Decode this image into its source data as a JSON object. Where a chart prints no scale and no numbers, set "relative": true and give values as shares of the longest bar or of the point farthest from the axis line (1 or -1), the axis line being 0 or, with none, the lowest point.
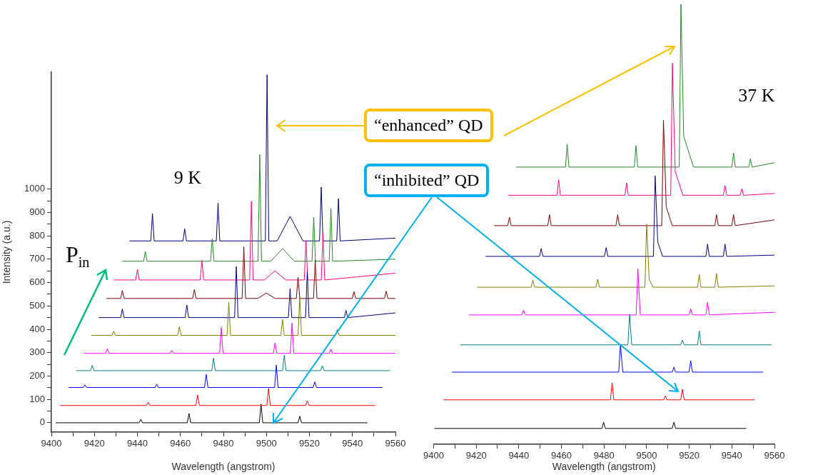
{
  "chart_data": [
    {
      "type": "line",
      "title": "9 K",
      "xlabel": "Wavelength (angstrom)",
      "ylabel": "Intensity (a.u.)",
      "xlim": [
        9400,
        9560
      ],
      "xticks": [
        9400,
        {
          "value": 9410,
          "label": null
        },
        9420,
        {
          "value": 9430,
          "label": null
        },
        9440,
        {
          "value": 9450,
          "label": null
        },
        9460,
        {
          "value": 9470,
          "label": null
        },
        9480,
        {
          "value": 9490,
          "label": null
        },
        9500,
        {
          "value": 9510,
          "label": null
        },
        9520,
        {
          "value": 9530,
          "label": null
        },
        9540,
        {
          "value": 9550,
          "label": null
        },
        9560
      ],
      "ylim": [
        -40,
        1500
      ],
      "yticks": [
        0,
        {
          "value": 50,
          "label": null
        },
        100,
        {
          "value": 150,
          "label": null
        },
        200,
        {
          "value": 250,
          "label": null
        },
        300,
        {
          "value": 350,
          "label": null
        },
        400,
        {
          "value": 450,
          "label": null
        },
        500,
        {
          "value": 550,
          "label": null
        },
        600,
        {
          "value": 650,
          "label": null
        },
        700,
        {
          "value": 750,
          "label": null
        },
        800,
        {
          "value": 850,
          "label": null
        },
        900,
        {
          "value": 950,
          "label": null
        },
        1000
      ],
      "grid": false,
      "legend": false,
      "marker": "none",
      "line_style": "solid",
      "annotations": [
        "“enhanced” QD",
        "“inhibited” QD",
        "P$_{in}$"
      ],
      "series": [
        {
          "color": "#000000",
          "x": [
            9402,
            9440.8,
            9441.6,
            9442.4,
            9463.2,
            9464,
            9464.8,
            9496.7,
            9497.5,
            9498.3,
            9514.7,
            9515.5,
            9516.3,
            9547
          ],
          "values": [
            0,
            0,
            15,
            0,
            0,
            40,
            0,
            0,
            80,
            0,
            0,
            28,
            0,
            0
          ]
        },
        {
          "color": "#ff0000",
          "x": [
            9404,
            9444.2,
            9445,
            9445.8,
            9467.2,
            9468,
            9468.8,
            9500.2,
            9501,
            9501.8,
            9518.2,
            9519,
            9519.8,
            9550.5
          ],
          "values": [
            74,
            74,
            88,
            74,
            74,
            119,
            74,
            74,
            147,
            74,
            74,
            94,
            74,
            74
          ]
        },
        {
          "color": "#0000ff",
          "x": [
            9408,
            9414.8,
            9415.6,
            9416.4,
            9448.2,
            9449,
            9449.8,
            9471.2,
            9472,
            9472.8,
            9503.8,
            9504.6,
            9505.4,
            9521.7,
            9522.5,
            9523.3,
            9554
          ],
          "values": [
            151,
            151,
            162,
            151,
            151,
            165,
            151,
            151,
            207,
            151,
            151,
            247,
            151,
            151,
            175,
            151,
            151
          ]
        },
        {
          "color": "#008080",
          "x": [
            9411.5,
            9418.2,
            9419,
            9419.8,
            9474.6,
            9475.4,
            9476.2,
            9507.5,
            9508.3,
            9509.1,
            9525.2,
            9526,
            9526.8,
            9557.5
          ],
          "values": [
            223,
            223,
            246,
            223,
            223,
            277,
            223,
            223,
            289,
            223,
            223,
            244,
            223,
            223
          ]
        },
        {
          "color": "#ff00ff",
          "x": [
            9415,
            9425.2,
            9426,
            9426.8,
            9455.2,
            9456,
            9456.8,
            9478.2,
            9479,
            9479.8,
            9503.2,
            9504,
            9504.8,
            9511.1,
            9511.9,
            9512.7,
            9529.2,
            9530,
            9530.8,
            9560
          ],
          "values": [
            297,
            297,
            317,
            297,
            297,
            310,
            297,
            297,
            408,
            297,
            297,
            342,
            297,
            297,
            427,
            297,
            297,
            315,
            297,
            297
          ]
        },
        {
          "color": "#808000",
          "x": [
            9418.5,
            9428.2,
            9429,
            9429.8,
            9458.7,
            9459.5,
            9460.3,
            9481.7,
            9482.5,
            9483.3,
            9506.7,
            9507.5,
            9508.3,
            9514.7,
            9515.5,
            9516.3,
            9532.2,
            9533,
            9533.8,
            9560
          ],
          "values": [
            374,
            374,
            392,
            374,
            374,
            411,
            374,
            374,
            515,
            374,
            374,
            442,
            374,
            374,
            538,
            374,
            374,
            400,
            374,
            374
          ]
        },
        {
          "color": "#000080",
          "x": [
            9422,
            9432.2,
            9433,
            9433.8,
            9462.2,
            9463,
            9463.8,
            9485.2,
            9486,
            9486.8,
            9510.2,
            9511,
            9511.8,
            9518.2,
            9519,
            9519.8,
            9536.2,
            9537,
            9537.8,
            9560
          ],
          "values": [
            450,
            450,
            487,
            450,
            450,
            504,
            450,
            450,
            668,
            450,
            450,
            574,
            450,
            450,
            648,
            450,
            450,
            481,
            450,
            470
          ]
        },
        {
          "color": "#800000",
          "x": [
            9425.6,
            9432.2,
            9433,
            9433.8,
            9465.7,
            9466.5,
            9467.3,
            9488.7,
            9489.5,
            9490.3,
            9496,
            9500,
            9504,
            9513.9,
            9514.7,
            9515.5,
            9521.9,
            9522.7,
            9523.5,
            9539.9,
            9540.7,
            9541.5,
            9554.9,
            9555.7,
            9556.5,
            9560
          ],
          "values": [
            532,
            532,
            566,
            532,
            532,
            570,
            532,
            532,
            753,
            532,
            532,
            555,
            532,
            532,
            623,
            532,
            532,
            696,
            532,
            532,
            561,
            532,
            532,
            563,
            532,
            532
          ]
        },
        {
          "color": "#ff0080",
          "x": [
            9429,
            9439.2,
            9440,
            9440.8,
            9469.2,
            9470,
            9470.8,
            9492.2,
            9493,
            9493.8,
            9499,
            9504,
            9509,
            9517.6,
            9518.4,
            9519.2,
            9525.5,
            9526.3,
            9527.1,
            9560
          ],
          "values": [
            611,
            611,
            656,
            611,
            611,
            694,
            611,
            611,
            948,
            611,
            611,
            650,
            611,
            611,
            778,
            611,
            611,
            810,
            611,
            640
          ]
        },
        {
          "color": "#228b22",
          "x": [
            9432.9,
            9442.9,
            9443.7,
            9444.5,
            9474,
            9474.8,
            9475.6,
            9496.1,
            9496.9,
            9497.7,
            9502,
            9507.5,
            9513,
            9521.2,
            9522,
            9522.8,
            9529.2,
            9530,
            9530.8,
            9560
          ],
          "values": [
            691,
            691,
            733,
            691,
            691,
            787,
            691,
            691,
            1147,
            691,
            691,
            745,
            691,
            691,
            880,
            691,
            691,
            917,
            691,
            700
          ]
        },
        {
          "color": "#000080",
          "x": [
            9436.3,
            9446.2,
            9447,
            9447.8,
            9461.2,
            9462,
            9462.8,
            9476.7,
            9477.5,
            9478.3,
            9499.5,
            9500.3,
            9501.1,
            9505,
            9511,
            9517,
            9524.7,
            9525.5,
            9526.3,
            9532.7,
            9533.5,
            9534.3,
            9560
          ],
          "values": [
            778,
            778,
            895,
            778,
            778,
            830,
            778,
            778,
            940,
            778,
            778,
            1489,
            778,
            778,
            883,
            778,
            778,
            1008,
            778,
            778,
            959,
            778,
            790
          ]
        }
      ]
    },
    {
      "type": "line",
      "title": "37 K",
      "xlabel": "Wavelength (angstrom)",
      "relative": true,
      "xlim": [
        9400,
        9560
      ],
      "xticks": [
        9400,
        {
          "value": 9410,
          "label": null
        },
        9420,
        {
          "value": 9430,
          "label": null
        },
        9440,
        {
          "value": 9450,
          "label": null
        },
        9460,
        {
          "value": 9470,
          "label": null
        },
        9480,
        {
          "value": 9490,
          "label": null
        },
        9500,
        {
          "value": 9510,
          "label": null
        },
        9520,
        {
          "value": 9530,
          "label": null
        },
        9540,
        {
          "value": 9550,
          "label": null
        },
        9560
      ],
      "grid": false,
      "legend": false,
      "marker": "none",
      "line_style": "solid",
      "series": [
        {
          "color": "#000000",
          "x": [
            9400.4,
            9479,
            9479.8,
            9480.6,
            9512,
            9512.8,
            9513.6,
            9546.8
          ],
          "values": [
            0.036,
            0.036,
            0.05,
            0.036,
            0.036,
            0.05,
            0.036,
            0.036
          ]
        },
        {
          "color": "#ff0000",
          "x": [
            9404.6,
            9483,
            9483.8,
            9484.6,
            9508,
            9508.8,
            9509.6,
            9516,
            9516.8,
            9517.6,
            9550.8
          ],
          "values": [
            0.101,
            0.101,
            0.14,
            0.101,
            0.101,
            0.11,
            0.101,
            0.101,
            0.125,
            0.101,
            0.101
          ]
        },
        {
          "color": "#0000ff",
          "x": [
            9408.6,
            9486.9,
            9487.7,
            9488.8,
            9512,
            9512.8,
            9513.6,
            9519.9,
            9520.7,
            9521.5,
            9554.7
          ],
          "values": [
            0.164,
            0.164,
            0.227,
            0.164,
            0.164,
            0.175,
            0.164,
            0.164,
            0.19,
            0.164,
            0.164
          ]
        },
        {
          "color": "#008080",
          "x": [
            9412.5,
            9491.2,
            9492,
            9493,
            9516,
            9516.8,
            9517.6,
            9523.9,
            9524.7,
            9525.5,
            9558.7
          ],
          "values": [
            0.226,
            0.226,
            0.295,
            0.226,
            0.226,
            0.237,
            0.226,
            0.226,
            0.258,
            0.226,
            0.226
          ]
        },
        {
          "color": "#ff00ff",
          "x": [
            9416.5,
            9441.4,
            9442.2,
            9443,
            9495.1,
            9495.9,
            9497,
            9519.9,
            9520.7,
            9521.5,
            9527.8,
            9528.6,
            9529.4,
            9560
          ],
          "values": [
            0.294,
            0.294,
            0.305,
            0.294,
            0.294,
            0.399,
            0.294,
            0.294,
            0.308,
            0.294,
            0.294,
            0.323,
            0.294,
            0.3
          ]
        },
        {
          "color": "#808000",
          "x": [
            9420.4,
            9445.8,
            9446.6,
            9447.4,
            9476.2,
            9477,
            9477.8,
            9499.2,
            9500,
            9501.2,
            9503,
            9523.9,
            9524.7,
            9525.5,
            9532,
            9532.8,
            9533.6,
            9560
          ],
          "values": [
            0.357,
            0.357,
            0.373,
            0.357,
            0.357,
            0.375,
            0.357,
            0.357,
            0.5,
            0.375,
            0.357,
            0.357,
            0.386,
            0.357,
            0.357,
            0.388,
            0.357,
            0.36
          ]
        },
        {
          "color": "#000080",
          "x": [
            9424.4,
            9449.7,
            9450.5,
            9451.3,
            9480.2,
            9481,
            9481.8,
            9503.2,
            9504,
            9505.2,
            9507.5,
            9527.8,
            9528.6,
            9529.4,
            9536,
            9536.8,
            9537.6,
            9560
          ],
          "values": [
            0.427,
            0.427,
            0.445,
            0.427,
            0.427,
            0.447,
            0.427,
            0.427,
            0.61,
            0.46,
            0.427,
            0.427,
            0.455,
            0.427,
            0.427,
            0.455,
            0.427,
            0.43
          ]
        },
        {
          "color": "#800000",
          "x": [
            9428.4,
            9434.8,
            9435.6,
            9436.4,
            9453.6,
            9454.4,
            9455.2,
            9485.6,
            9486.4,
            9487.2,
            9507.1,
            9507.9,
            9509.2,
            9512,
            9532,
            9532.8,
            9533.6,
            9540,
            9540.8,
            9541.6,
            9560
          ],
          "values": [
            0.497,
            0.497,
            0.516,
            0.497,
            0.497,
            0.522,
            0.497,
            0.497,
            0.522,
            0.497,
            0.497,
            0.737,
            0.54,
            0.497,
            0.497,
            0.522,
            0.497,
            0.497,
            0.522,
            0.497,
            0.51
          ]
        },
        {
          "color": "#ff0080",
          "x": [
            9435,
            9457.9,
            9458.7,
            9459.5,
            9489.8,
            9490.6,
            9491.4,
            9511.3,
            9512.1,
            9513.4,
            9517,
            9536,
            9536.8,
            9537.6,
            9543.9,
            9544.7,
            9545.5,
            9560
          ],
          "values": [
            0.566,
            0.566,
            0.601,
            0.566,
            0.566,
            0.594,
            0.566,
            0.566,
            0.866,
            0.62,
            0.566,
            0.566,
            0.588,
            0.566,
            0.566,
            0.581,
            0.566,
            0.57
          ]
        },
        {
          "color": "#228b22",
          "x": [
            9438.7,
            9461.9,
            9462.7,
            9463.5,
            9494.2,
            9495,
            9495.8,
            9515.3,
            9516.1,
            9517.4,
            9522,
            9540,
            9540.8,
            9541.6,
            9547.9,
            9548.7,
            9549.5,
            9560
          ],
          "values": [
            0.63,
            0.63,
            0.682,
            0.63,
            0.63,
            0.679,
            0.63,
            0.63,
            1,
            0.7,
            0.63,
            0.63,
            0.662,
            0.63,
            0.63,
            0.649,
            0.63,
            0.64
          ]
        }
      ]
    }
  ]
}
